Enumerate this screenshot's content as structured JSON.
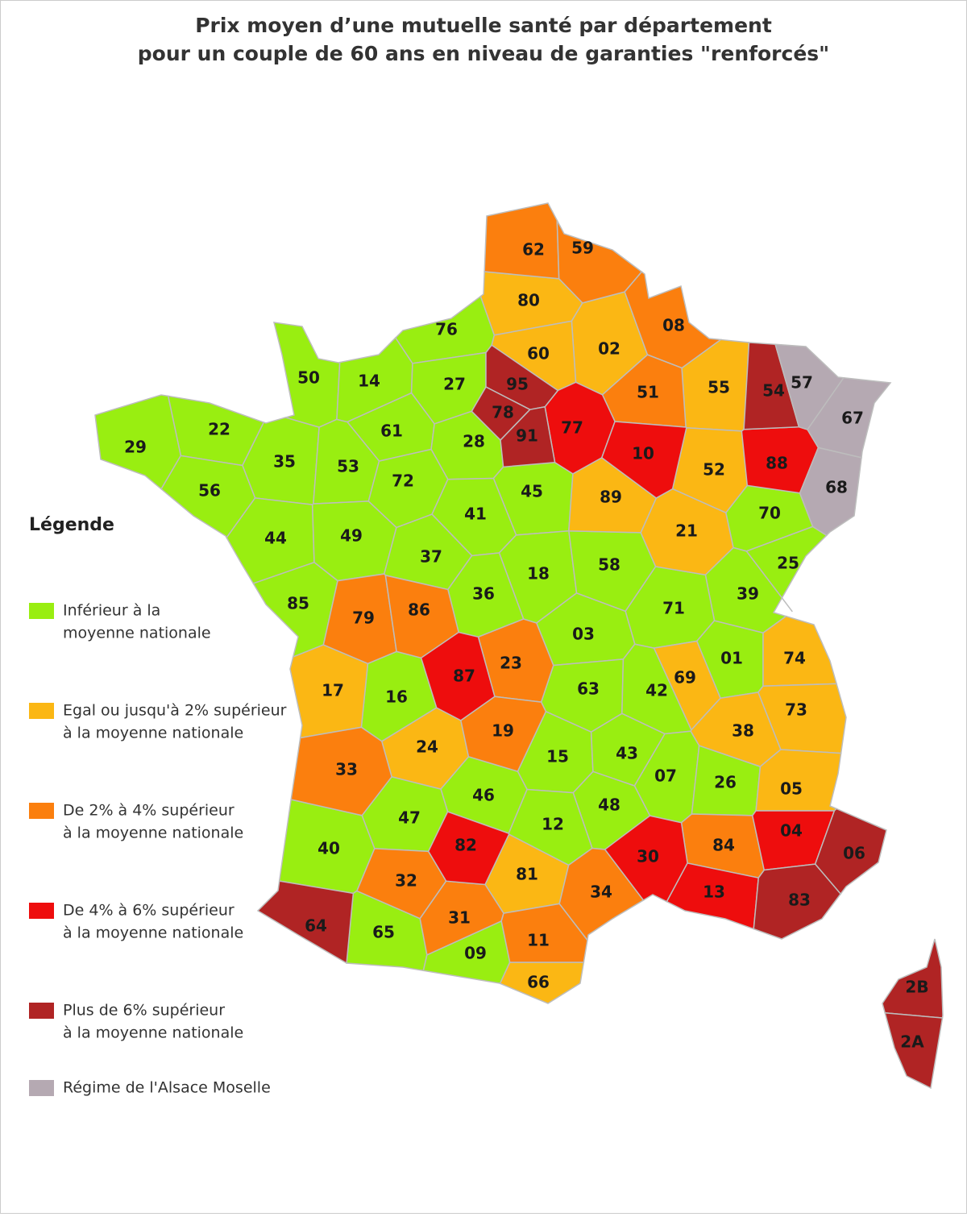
{
  "title": [
    "Prix moyen d’une mutuelle santé par département",
    "pour un couple de 60 ans en niveau de garanties \"renforcés\""
  ],
  "legend": {
    "title": "Légende",
    "items": [
      {
        "label": [
          "Inférieur à la",
          "moyenne nationale"
        ],
        "color": "#99ee11",
        "departments": [
          "76",
          "50",
          "14",
          "27",
          "22",
          "29",
          "61",
          "35",
          "53",
          "28",
          "72",
          "56",
          "45",
          "41",
          "44",
          "49",
          "37",
          "18",
          "58",
          "70",
          "25",
          "39",
          "71",
          "36",
          "85",
          "03",
          "01",
          "16",
          "63",
          "42",
          "15",
          "43",
          "07",
          "26",
          "46",
          "48",
          "47",
          "12",
          "40",
          "65",
          "09"
        ]
      },
      {
        "label": [
          "Egal ou jusqu'à 2% supérieur",
          "à la moyenne nationale"
        ],
        "color": "#fbb714",
        "departments": [
          "80",
          "02",
          "60",
          "55",
          "89",
          "52",
          "21",
          "69",
          "74",
          "73",
          "38",
          "17",
          "24",
          "05",
          "81",
          "66"
        ]
      },
      {
        "label": [
          "De 2% à 4% supérieur",
          "à la moyenne nationale"
        ],
        "color": "#fb7f0e",
        "departments": [
          "62",
          "59",
          "08",
          "51",
          "79",
          "86",
          "23",
          "19",
          "33",
          "32",
          "31",
          "11",
          "34",
          "84"
        ]
      },
      {
        "label": [
          "De 4% à 6% supérieur",
          "à la moyenne nationale"
        ],
        "color": "#ee0d0d",
        "departments": [
          "77",
          "10",
          "88",
          "87",
          "82",
          "04",
          "30",
          "13"
        ]
      },
      {
        "label": [
          "Plus de 6% supérieur",
          "à la moyenne nationale"
        ],
        "color": "#b02424",
        "departments": [
          "95",
          "78",
          "91",
          "54",
          "06",
          "83",
          "64",
          "2B",
          "2A"
        ]
      },
      {
        "label": [
          "Régime de l'Alsace Moselle"
        ],
        "color": "#b5a9b2",
        "departments": [
          "57",
          "67",
          "68"
        ]
      }
    ]
  }
}
